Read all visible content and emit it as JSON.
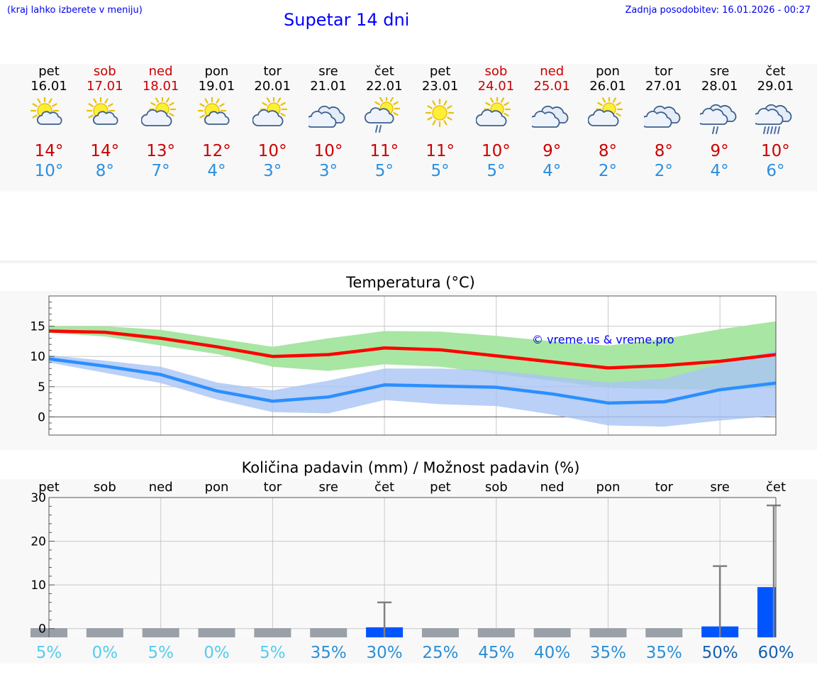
{
  "header": {
    "hint": "(kraj lahko izberete v meniju)",
    "title": "Supetar 14 dni",
    "updated": "Zadnja posodobitev: 16.01.2026 - 00:27"
  },
  "colors": {
    "weekend": "#cc0000",
    "weekday": "#000000",
    "tmax_line": "#ff0000",
    "tmin_line": "#2b8fff",
    "tmax_band": "#a8e6a3",
    "tmin_band": "#a9c4f5",
    "bar": "#0055ff",
    "whisker": "#808080"
  },
  "days": [
    {
      "name": "pet",
      "date": "16.01",
      "weekend": false,
      "icon": "sun-cloud-icon",
      "tmax": "14°",
      "tmin": "10°"
    },
    {
      "name": "sob",
      "date": "17.01",
      "weekend": true,
      "icon": "sun-cloud-icon",
      "tmax": "14°",
      "tmin": "8°"
    },
    {
      "name": "ned",
      "date": "18.01",
      "weekend": true,
      "icon": "sun-cloud-large-icon",
      "tmax": "13°",
      "tmin": "7°"
    },
    {
      "name": "pon",
      "date": "19.01",
      "weekend": false,
      "icon": "sun-cloud-icon",
      "tmax": "12°",
      "tmin": "4°"
    },
    {
      "name": "tor",
      "date": "20.01",
      "weekend": false,
      "icon": "sun-cloud-large-icon",
      "tmax": "10°",
      "tmin": "3°"
    },
    {
      "name": "sre",
      "date": "21.01",
      "weekend": false,
      "icon": "cloudy-icon",
      "tmax": "10°",
      "tmin": "3°"
    },
    {
      "name": "čet",
      "date": "22.01",
      "weekend": false,
      "icon": "sun-cloud-rain-icon",
      "tmax": "11°",
      "tmin": "5°"
    },
    {
      "name": "pet",
      "date": "23.01",
      "weekend": false,
      "icon": "sun-icon",
      "tmax": "11°",
      "tmin": "5°"
    },
    {
      "name": "sob",
      "date": "24.01",
      "weekend": true,
      "icon": "sun-cloud-large-icon",
      "tmax": "10°",
      "tmin": "5°"
    },
    {
      "name": "ned",
      "date": "25.01",
      "weekend": true,
      "icon": "cloudy-icon",
      "tmax": "9°",
      "tmin": "4°"
    },
    {
      "name": "pon",
      "date": "26.01",
      "weekend": false,
      "icon": "sun-cloud-large-icon",
      "tmax": "8°",
      "tmin": "2°"
    },
    {
      "name": "tor",
      "date": "27.01",
      "weekend": false,
      "icon": "cloudy-icon",
      "tmax": "8°",
      "tmin": "2°"
    },
    {
      "name": "sre",
      "date": "28.01",
      "weekend": false,
      "icon": "cloud-rain-icon",
      "tmax": "9°",
      "tmin": "4°"
    },
    {
      "name": "čet",
      "date": "29.01",
      "weekend": false,
      "icon": "cloud-heavy-rain-icon",
      "tmax": "10°",
      "tmin": "6°"
    }
  ],
  "chart_data": [
    {
      "type": "line",
      "title": "Temperatura (°C)",
      "ylim": [
        -3,
        20
      ],
      "yticks": [
        "0",
        "5",
        "10",
        "15"
      ],
      "grid": true,
      "watermark": "© vreme.us & vreme.pro",
      "x": [
        0,
        1,
        2,
        3,
        4,
        5,
        6,
        7,
        8,
        9,
        10,
        11,
        12,
        13
      ],
      "series": [
        {
          "name": "max",
          "values": [
            14.2,
            14.0,
            13.0,
            11.6,
            10.0,
            10.3,
            11.4,
            11.1,
            10.1,
            9.1,
            8.1,
            8.5,
            9.2,
            10.3
          ],
          "band_low": [
            13.9,
            13.3,
            11.8,
            10.4,
            8.3,
            7.6,
            8.7,
            8.3,
            7.1,
            6.0,
            4.8,
            4.6,
            4.5,
            4.8
          ],
          "band_high": [
            15.0,
            15.0,
            14.4,
            13.0,
            11.6,
            13.0,
            14.2,
            14.1,
            13.4,
            12.5,
            11.8,
            12.9,
            14.5,
            15.8
          ]
        },
        {
          "name": "min",
          "values": [
            9.6,
            8.4,
            7.0,
            4.3,
            2.6,
            3.3,
            5.3,
            5.1,
            4.9,
            3.8,
            2.3,
            2.5,
            4.5,
            5.6
          ],
          "band_low": [
            9.0,
            7.3,
            5.6,
            2.9,
            0.8,
            0.6,
            2.8,
            2.1,
            1.8,
            0.4,
            -1.4,
            -1.6,
            -0.6,
            0.2
          ],
          "band_high": [
            10.2,
            9.3,
            8.3,
            5.7,
            4.4,
            6.0,
            8.0,
            8.0,
            7.7,
            6.7,
            5.7,
            6.3,
            8.7,
            11.0
          ]
        }
      ]
    },
    {
      "type": "bar",
      "title": "Količina padavin (mm) / Možnost padavin (%)",
      "ylim": [
        -2,
        30
      ],
      "yticks": [
        "0",
        "10",
        "20",
        "30"
      ],
      "categories": [
        "pet",
        "sob",
        "ned",
        "pon",
        "tor",
        "sre",
        "čet",
        "pet",
        "sob",
        "ned",
        "pon",
        "tor",
        "sre",
        "čet"
      ],
      "values": [
        0.1,
        0.1,
        0.1,
        0.1,
        0.1,
        0.1,
        0.3,
        0.1,
        0.1,
        0.1,
        0.1,
        0.1,
        0.5,
        9.5
      ],
      "whisker_max": [
        0,
        0,
        0,
        0,
        0,
        0,
        6.0,
        0,
        0,
        0,
        0,
        0,
        14.3,
        28.2
      ],
      "probability": [
        "5%",
        "0%",
        "5%",
        "0%",
        "5%",
        "35%",
        "30%",
        "25%",
        "45%",
        "40%",
        "35%",
        "35%",
        "50%",
        "60%"
      ],
      "probability_colors": [
        "#55ccee",
        "#55ccee",
        "#55ccee",
        "#55ccee",
        "#55ccee",
        "#2a8fd6",
        "#2a8fd6",
        "#2a8fd6",
        "#2a8fd6",
        "#2a8fd6",
        "#2a8fd6",
        "#2a8fd6",
        "#1560b0",
        "#1560b0"
      ]
    }
  ]
}
